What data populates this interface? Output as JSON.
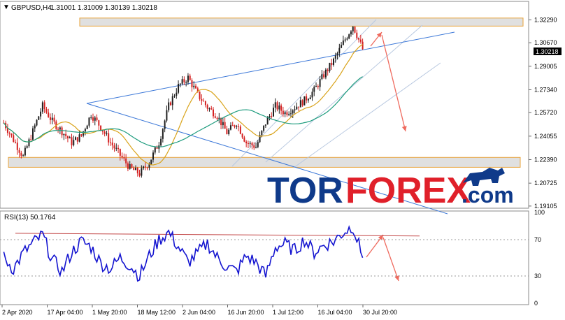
{
  "header": {
    "symbol": "GBPUSD,H4",
    "ohlc": "1.31001 1.31009 1.30139 1.30218"
  },
  "rsi_header": "RSI(13) 50.1764",
  "current_price_tag": "1.30218",
  "watermark": {
    "part1": "TOR",
    "part2": "FOREX",
    "part3": ".com"
  },
  "colors": {
    "bull": "#1f1f1f",
    "bear": "#d42020",
    "ma_fast": "#d9a31a",
    "ma_slow": "#1e9c7e",
    "trendline": "#3c78d8",
    "channel": "#b8c8e0",
    "zone": "#d6d6d6",
    "zone_border": "#e8a33a",
    "arrow": "#ef6a5e",
    "rsi": "#1414d0",
    "rsi_level": "#c24545",
    "logo_blue": "#0f3a8a",
    "logo_red": "#e0202a"
  },
  "chart_data": [
    {
      "type": "candlestick",
      "ylim": [
        1.1905,
        1.335
      ],
      "yticks": [
        "1.32290",
        "1.30670",
        "1.29005",
        "1.27340",
        "1.25720",
        "1.24055",
        "1.22390",
        "1.20725",
        "1.19105"
      ],
      "ytick_values": [
        1.3229,
        1.3067,
        1.29005,
        1.2734,
        1.2572,
        1.24055,
        1.2239,
        1.20725,
        1.19105
      ],
      "xticks": [
        "2 Apr 2020",
        "17 Apr 04:00",
        "1 May 20:00",
        "18 May 12:00",
        "2 Jun 04:00",
        "16 Jun 20:00",
        "1 Jul 12:00",
        "16 Jul 04:00",
        "30 Jul 20:00"
      ],
      "close_path": [
        1.25,
        1.238,
        1.226,
        1.244,
        1.262,
        1.251,
        1.244,
        1.236,
        1.241,
        1.256,
        1.247,
        1.236,
        1.227,
        1.218,
        1.214,
        1.222,
        1.236,
        1.262,
        1.276,
        1.282,
        1.27,
        1.261,
        1.255,
        1.243,
        1.25,
        1.236,
        1.233,
        1.25,
        1.262,
        1.257,
        1.261,
        1.266,
        1.273,
        1.284,
        1.294,
        1.3067,
        1.319,
        1.30218
      ],
      "resistance_zone": [
        1.3185,
        1.3242
      ],
      "support_zone": [
        1.2185,
        1.2255
      ],
      "last_price": 1.30218
    },
    {
      "type": "line",
      "title": "RSI(13) 50.1764",
      "ylim": [
        0,
        100
      ],
      "yticks": [
        "100",
        "70",
        "30",
        "0"
      ],
      "ytick_values": [
        100,
        70,
        30,
        0
      ],
      "levels": [
        70,
        30
      ],
      "path": [
        50,
        38,
        55,
        66,
        75,
        48,
        35,
        56,
        68,
        62,
        44,
        38,
        50,
        42,
        30,
        52,
        70,
        78,
        62,
        45,
        55,
        66,
        50,
        40,
        35,
        52,
        45,
        30,
        62,
        65,
        58,
        70,
        56,
        64,
        68,
        78,
        85,
        50
      ]
    }
  ]
}
